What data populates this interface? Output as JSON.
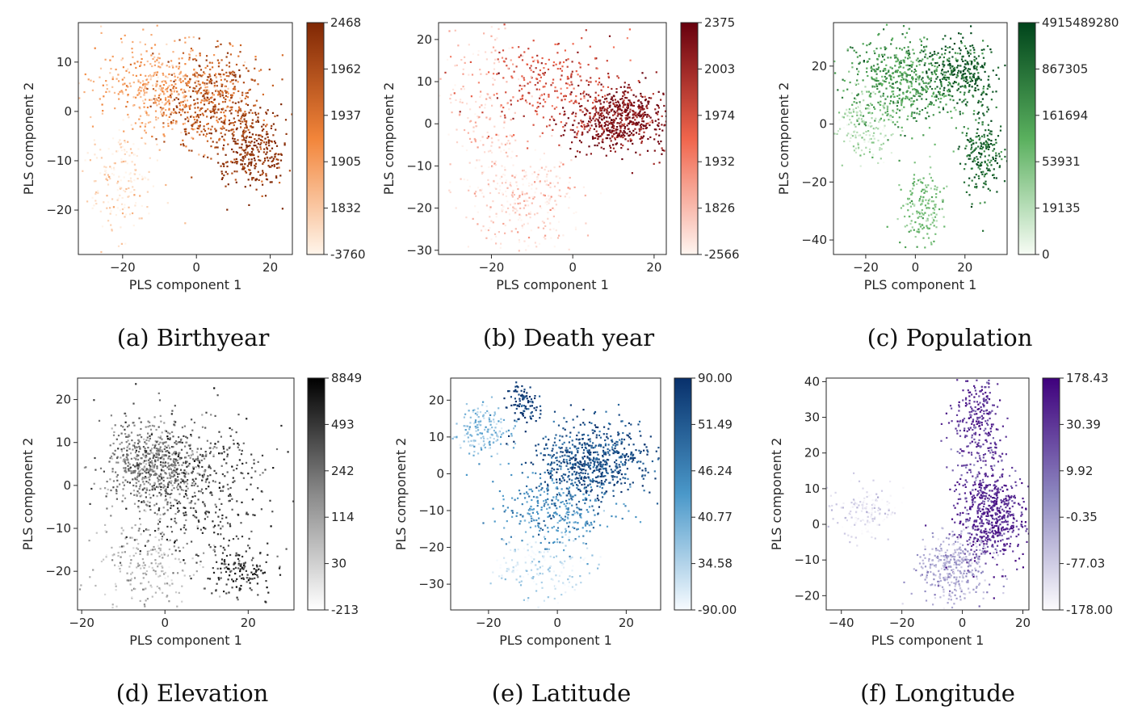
{
  "chart_data": [
    {
      "type": "scatter",
      "caption": "(a) Birthyear",
      "xlabel": "PLS component 1",
      "ylabel": "PLS component 2",
      "xlim": [
        -32,
        26
      ],
      "ylim": [
        -29,
        18
      ],
      "xticks": [
        -20,
        0,
        20
      ],
      "yticks": [
        -20,
        -10,
        0,
        10
      ],
      "colorbar": {
        "cmap": "Oranges",
        "tick_labels": [
          "2468",
          "1962",
          "1937",
          "1905",
          "1832",
          "-3760"
        ]
      },
      "colors": {
        "low": "#fff5eb",
        "mid": "#f2853a",
        "high": "#7f2704"
      },
      "density_lobes": [
        {
          "x": -10,
          "y": 5,
          "sx": 9,
          "sy": 5,
          "w": 0.3,
          "v": 0.35
        },
        {
          "x": 5,
          "y": 2,
          "sx": 7,
          "sy": 5,
          "w": 0.35,
          "v": 0.75
        },
        {
          "x": 15,
          "y": -8,
          "sx": 5,
          "sy": 4,
          "w": 0.22,
          "v": 0.95
        },
        {
          "x": -20,
          "y": -14,
          "sx": 5,
          "sy": 5,
          "w": 0.13,
          "v": 0.08
        }
      ]
    },
    {
      "type": "scatter",
      "caption": "(b) Death year",
      "xlabel": "PLS component 1",
      "ylabel": "PLS component 2",
      "xlim": [
        -33,
        23
      ],
      "ylim": [
        -31,
        24
      ],
      "xticks": [
        -20,
        0,
        20
      ],
      "yticks": [
        -30,
        -20,
        -10,
        0,
        10,
        20
      ],
      "colorbar": {
        "cmap": "Reds",
        "tick_labels": [
          "2375",
          "2003",
          "1974",
          "1932",
          "1826",
          "-2566"
        ]
      },
      "colors": {
        "low": "#fff5f0",
        "mid": "#f0654c",
        "high": "#67000d"
      },
      "density_lobes": [
        {
          "x": 12,
          "y": 1,
          "sx": 6,
          "sy": 4,
          "w": 0.45,
          "v": 0.9
        },
        {
          "x": -5,
          "y": 9,
          "sx": 9,
          "sy": 6,
          "w": 0.2,
          "v": 0.6
        },
        {
          "x": -22,
          "y": 5,
          "sx": 6,
          "sy": 9,
          "w": 0.15,
          "v": 0.15
        },
        {
          "x": -12,
          "y": -18,
          "sx": 7,
          "sy": 6,
          "w": 0.2,
          "v": 0.08
        }
      ]
    },
    {
      "type": "scatter",
      "caption": "(c) Population",
      "xlabel": "PLS component 1",
      "ylabel": "PLS component 2",
      "xlim": [
        -33,
        37
      ],
      "ylim": [
        -45,
        35
      ],
      "xticks": [
        -20,
        0,
        20
      ],
      "yticks": [
        -40,
        -20,
        0,
        20
      ],
      "colorbar": {
        "cmap": "Greens",
        "tick_labels": [
          "4915489280",
          "867305",
          "161694",
          "53931",
          "19135",
          "0"
        ]
      },
      "colors": {
        "low": "#f7fcf5",
        "mid": "#5ab05e",
        "high": "#00441b"
      },
      "density_lobes": [
        {
          "x": -5,
          "y": 15,
          "sx": 12,
          "sy": 8,
          "w": 0.4,
          "v": 0.6
        },
        {
          "x": 18,
          "y": 18,
          "sx": 7,
          "sy": 6,
          "w": 0.2,
          "v": 0.9
        },
        {
          "x": 27,
          "y": -10,
          "sx": 4,
          "sy": 8,
          "w": 0.15,
          "v": 0.85
        },
        {
          "x": 3,
          "y": -30,
          "sx": 5,
          "sy": 7,
          "w": 0.12,
          "v": 0.4
        },
        {
          "x": -20,
          "y": 0,
          "sx": 6,
          "sy": 6,
          "w": 0.13,
          "v": 0.2
        }
      ]
    },
    {
      "type": "scatter",
      "caption": "(d) Elevation",
      "xlabel": "PLS component 1",
      "ylabel": "PLS component 2",
      "xlim": [
        -21,
        31
      ],
      "ylim": [
        -29,
        25
      ],
      "xticks": [
        -20,
        0,
        20
      ],
      "yticks": [
        -20,
        -10,
        0,
        10,
        20
      ],
      "colorbar": {
        "cmap": "Greys",
        "tick_labels": [
          "8849",
          "493",
          "242",
          "114",
          "30",
          "-213"
        ]
      },
      "colors": {
        "low": "#ffffff",
        "mid": "#8a8a8a",
        "high": "#000000"
      },
      "density_lobes": [
        {
          "x": -3,
          "y": 5,
          "sx": 6,
          "sy": 5,
          "w": 0.45,
          "v": 0.55
        },
        {
          "x": 8,
          "y": 0,
          "sx": 9,
          "sy": 9,
          "w": 0.3,
          "v": 0.75
        },
        {
          "x": 18,
          "y": -20,
          "sx": 4,
          "sy": 3,
          "w": 0.1,
          "v": 0.8
        },
        {
          "x": -5,
          "y": -18,
          "sx": 6,
          "sy": 6,
          "w": 0.15,
          "v": 0.3
        }
      ]
    },
    {
      "type": "scatter",
      "caption": "(e) Latitude",
      "xlabel": "PLS component 1",
      "ylabel": "PLS component 2",
      "xlim": [
        -31,
        30
      ],
      "ylim": [
        -37,
        26
      ],
      "xticks": [
        -20,
        0,
        20
      ],
      "yticks": [
        -30,
        -20,
        -10,
        0,
        10,
        20
      ],
      "colorbar": {
        "cmap": "Blues",
        "tick_labels": [
          "90.00",
          "51.49",
          "46.24",
          "40.77",
          "34.58",
          "-90.00"
        ]
      },
      "colors": {
        "low": "#f7fbff",
        "mid": "#4a98c9",
        "high": "#08306b"
      },
      "density_lobes": [
        {
          "x": 10,
          "y": 3,
          "sx": 8,
          "sy": 5,
          "w": 0.45,
          "v": 0.85
        },
        {
          "x": -1,
          "y": -10,
          "sx": 8,
          "sy": 5,
          "w": 0.22,
          "v": 0.55
        },
        {
          "x": -22,
          "y": 12,
          "sx": 4,
          "sy": 4,
          "w": 0.13,
          "v": 0.3
        },
        {
          "x": -10,
          "y": 20,
          "sx": 2.5,
          "sy": 2.5,
          "w": 0.06,
          "v": 0.95
        },
        {
          "x": -5,
          "y": -25,
          "sx": 7,
          "sy": 5,
          "w": 0.14,
          "v": 0.12
        }
      ]
    },
    {
      "type": "scatter",
      "caption": "(f) Longitude",
      "xlabel": "PLS component 1",
      "ylabel": "PLS component 2",
      "xlim": [
        -45,
        22
      ],
      "ylim": [
        -24,
        41
      ],
      "xticks": [
        -40,
        -20,
        0,
        20
      ],
      "yticks": [
        -20,
        -10,
        0,
        10,
        20,
        30,
        40
      ],
      "colorbar": {
        "cmap": "Purples",
        "tick_labels": [
          "178.43",
          "30.39",
          "9.92",
          "-0.35",
          "-77.03",
          "-178.00"
        ]
      },
      "colors": {
        "low": "#fcfbfd",
        "mid": "#8c86bf",
        "high": "#3f007d"
      },
      "density_lobes": [
        {
          "x": 10,
          "y": 2,
          "sx": 6,
          "sy": 6,
          "w": 0.4,
          "v": 0.85
        },
        {
          "x": -3,
          "y": -12,
          "sx": 6,
          "sy": 5,
          "w": 0.25,
          "v": 0.35
        },
        {
          "x": 5,
          "y": 30,
          "sx": 4,
          "sy": 6,
          "w": 0.15,
          "v": 0.8
        },
        {
          "x": -33,
          "y": 3,
          "sx": 6,
          "sy": 4,
          "w": 0.12,
          "v": 0.1
        },
        {
          "x": 5,
          "y": 15,
          "sx": 4,
          "sy": 5,
          "w": 0.08,
          "v": 0.7
        }
      ]
    }
  ]
}
